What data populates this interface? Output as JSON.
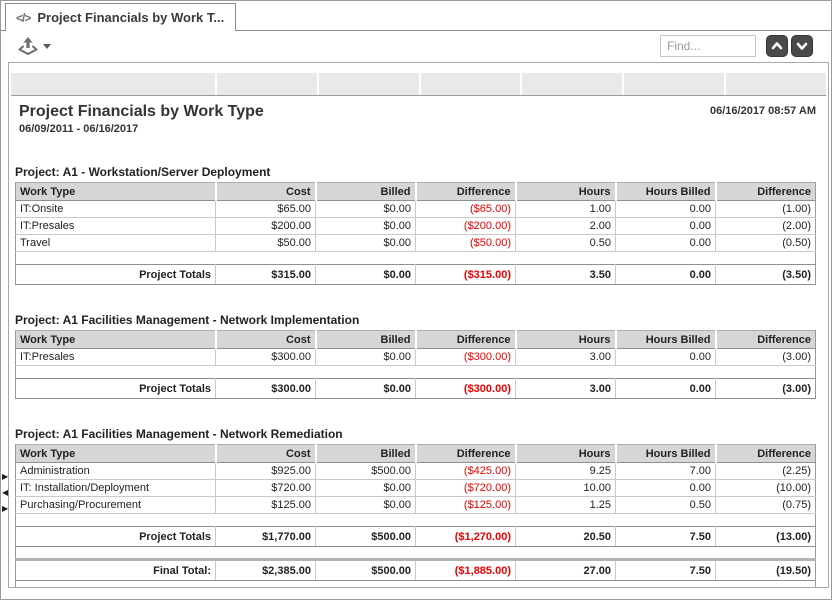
{
  "window": {
    "tab": {
      "icon": "code-icon",
      "label": "Project Financials by Work T..."
    },
    "toolbar": {
      "export_icon": "export-icon",
      "find_placeholder": "Find...",
      "find_prev_icon": "chevron-up-icon",
      "find_next_icon": "chevron-down-icon"
    },
    "edge_arrows": [
      {
        "direction": "right"
      },
      {
        "direction": "left"
      },
      {
        "direction": "right"
      }
    ]
  },
  "report": {
    "title": "Project Financials by Work Type",
    "date_range": "06/09/2011 - 06/16/2017",
    "generated_at": "06/16/2017 08:57 AM",
    "columns": [
      "Work Type",
      "Cost",
      "Billed",
      "Difference",
      "Hours",
      "Hours Billed",
      "Difference"
    ],
    "sections": [
      {
        "title": "Project: A1 - Workstation/Server Deployment",
        "rows": [
          [
            "IT:Onsite",
            "$65.00",
            "$0.00",
            "($65.00)",
            "1.00",
            "0.00",
            "(1.00)"
          ],
          [
            "IT:Presales",
            "$200.00",
            "$0.00",
            "($200.00)",
            "2.00",
            "0.00",
            "(2.00)"
          ],
          [
            "Travel",
            "$50.00",
            "$0.00",
            "($50.00)",
            "0.50",
            "0.00",
            "(0.50)"
          ]
        ],
        "totals": {
          "label": "Project Totals",
          "values": [
            "$315.00",
            "$0.00",
            "($315.00)",
            "3.50",
            "0.00",
            "(3.50)"
          ]
        }
      },
      {
        "title": "Project: A1 Facilities Management - Network Implementation",
        "rows": [
          [
            "IT:Presales",
            "$300.00",
            "$0.00",
            "($300.00)",
            "3.00",
            "0.00",
            "(3.00)"
          ]
        ],
        "totals": {
          "label": "Project Totals",
          "values": [
            "$300.00",
            "$0.00",
            "($300.00)",
            "3.00",
            "0.00",
            "(3.00)"
          ]
        }
      },
      {
        "title": "Project: A1 Facilities Management - Network Remediation",
        "rows": [
          [
            "Administration",
            "$925.00",
            "$500.00",
            "($425.00)",
            "9.25",
            "7.00",
            "(2.25)"
          ],
          [
            "IT: Installation/Deployment",
            "$720.00",
            "$0.00",
            "($720.00)",
            "10.00",
            "0.00",
            "(10.00)"
          ],
          [
            "Purchasing/Procurement",
            "$125.00",
            "$0.00",
            "($125.00)",
            "1.25",
            "0.50",
            "(0.75)"
          ]
        ],
        "totals": {
          "label": "Project Totals",
          "values": [
            "$1,770.00",
            "$500.00",
            "($1,270.00)",
            "20.50",
            "7.50",
            "(13.00)"
          ]
        }
      }
    ],
    "final_total": {
      "label": "Final Total:",
      "values": [
        "$2,385.00",
        "$500.00",
        "($1,885.00)",
        "27.00",
        "7.50",
        "(19.50)"
      ]
    }
  },
  "colors": {
    "negative": "#ee0000",
    "header_gray": "#d6d6d6"
  }
}
